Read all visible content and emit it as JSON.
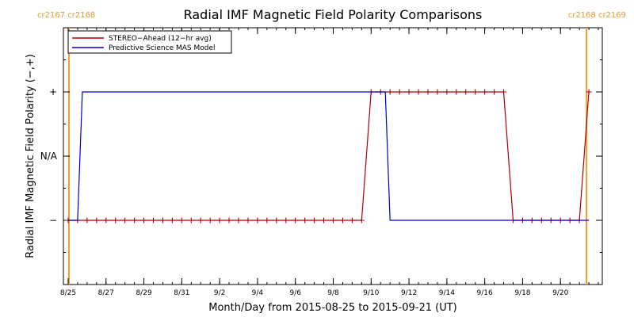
{
  "chart_data": {
    "type": "line",
    "title": "Radial IMF Magnetic Field Polarity Comparisons",
    "xlabel": "Month/Day from 2015-08-25 to 2015-09-21 (UT)",
    "ylabel": "Radial IMF Magnetic Field Polarity (−,+)",
    "xlim": [
      "2015-08-25T00:00",
      "2015-09-22T00:00"
    ],
    "ylim": [
      -2,
      2
    ],
    "x_ticks": [
      {
        "date": "2015-08-25",
        "label": "8/25"
      },
      {
        "date": "2015-08-27",
        "label": "8/27"
      },
      {
        "date": "2015-08-29",
        "label": "8/29"
      },
      {
        "date": "2015-08-31",
        "label": "8/31"
      },
      {
        "date": "2015-09-02",
        "label": "9/2"
      },
      {
        "date": "2015-09-04",
        "label": "9/4"
      },
      {
        "date": "2015-09-06",
        "label": "9/6"
      },
      {
        "date": "2015-09-08",
        "label": "9/8"
      },
      {
        "date": "2015-09-10",
        "label": "9/10"
      },
      {
        "date": "2015-09-12",
        "label": "9/12"
      },
      {
        "date": "2015-09-14",
        "label": "9/14"
      },
      {
        "date": "2015-09-16",
        "label": "9/16"
      },
      {
        "date": "2015-09-18",
        "label": "9/18"
      },
      {
        "date": "2015-09-20",
        "label": "9/20"
      }
    ],
    "y_ticks": [
      {
        "value": 1,
        "label": "+"
      },
      {
        "value": 0,
        "label": "N/A"
      },
      {
        "value": -1,
        "label": "−"
      }
    ],
    "carrington_markers": [
      {
        "date": "2015-08-25T01:00",
        "label": "cr2167 cr2168",
        "color": "#f0a030"
      },
      {
        "date": "2015-09-21T09:00",
        "label": "cr2168 cr2169",
        "color": "#f0a030"
      }
    ],
    "legend_position": "top-left",
    "series": [
      {
        "name": "STEREO−Ahead (12−hr avg)",
        "color": "#b00000",
        "marker": "plus",
        "points": [
          {
            "x": "2015-08-25T00:00",
            "y": -1
          },
          {
            "x": "2015-08-25T12:00",
            "y": -1
          },
          {
            "x": "2015-08-26T00:00",
            "y": -1
          },
          {
            "x": "2015-08-26T12:00",
            "y": -1
          },
          {
            "x": "2015-08-27T00:00",
            "y": -1
          },
          {
            "x": "2015-08-27T12:00",
            "y": -1
          },
          {
            "x": "2015-08-28T00:00",
            "y": -1
          },
          {
            "x": "2015-08-28T12:00",
            "y": -1
          },
          {
            "x": "2015-08-29T00:00",
            "y": -1
          },
          {
            "x": "2015-08-29T12:00",
            "y": -1
          },
          {
            "x": "2015-08-30T00:00",
            "y": -1
          },
          {
            "x": "2015-08-30T12:00",
            "y": -1
          },
          {
            "x": "2015-08-31T00:00",
            "y": -1
          },
          {
            "x": "2015-08-31T12:00",
            "y": -1
          },
          {
            "x": "2015-09-01T00:00",
            "y": -1
          },
          {
            "x": "2015-09-01T12:00",
            "y": -1
          },
          {
            "x": "2015-09-02T00:00",
            "y": -1
          },
          {
            "x": "2015-09-02T12:00",
            "y": -1
          },
          {
            "x": "2015-09-03T00:00",
            "y": -1
          },
          {
            "x": "2015-09-03T12:00",
            "y": -1
          },
          {
            "x": "2015-09-04T00:00",
            "y": -1
          },
          {
            "x": "2015-09-04T12:00",
            "y": -1
          },
          {
            "x": "2015-09-05T00:00",
            "y": -1
          },
          {
            "x": "2015-09-05T12:00",
            "y": -1
          },
          {
            "x": "2015-09-06T00:00",
            "y": -1
          },
          {
            "x": "2015-09-06T12:00",
            "y": -1
          },
          {
            "x": "2015-09-07T00:00",
            "y": -1
          },
          {
            "x": "2015-09-07T12:00",
            "y": -1
          },
          {
            "x": "2015-09-08T00:00",
            "y": -1
          },
          {
            "x": "2015-09-08T12:00",
            "y": -1
          },
          {
            "x": "2015-09-09T00:00",
            "y": -1
          },
          {
            "x": "2015-09-09T12:00",
            "y": -1
          },
          {
            "x": "2015-09-10T00:00",
            "y": 1
          },
          {
            "x": "2015-09-10T12:00",
            "y": 1
          },
          {
            "x": "2015-09-11T00:00",
            "y": 1
          },
          {
            "x": "2015-09-11T12:00",
            "y": 1
          },
          {
            "x": "2015-09-12T00:00",
            "y": 1
          },
          {
            "x": "2015-09-12T12:00",
            "y": 1
          },
          {
            "x": "2015-09-13T00:00",
            "y": 1
          },
          {
            "x": "2015-09-13T12:00",
            "y": 1
          },
          {
            "x": "2015-09-14T00:00",
            "y": 1
          },
          {
            "x": "2015-09-14T12:00",
            "y": 1
          },
          {
            "x": "2015-09-15T00:00",
            "y": 1
          },
          {
            "x": "2015-09-15T12:00",
            "y": 1
          },
          {
            "x": "2015-09-16T00:00",
            "y": 1
          },
          {
            "x": "2015-09-16T12:00",
            "y": 1
          },
          {
            "x": "2015-09-17T00:00",
            "y": 1
          },
          {
            "x": "2015-09-17T12:00",
            "y": -1
          },
          {
            "x": "2015-09-18T00:00",
            "y": -1
          },
          {
            "x": "2015-09-18T12:00",
            "y": -1
          },
          {
            "x": "2015-09-19T00:00",
            "y": -1
          },
          {
            "x": "2015-09-19T12:00",
            "y": -1
          },
          {
            "x": "2015-09-20T00:00",
            "y": -1
          },
          {
            "x": "2015-09-20T12:00",
            "y": -1
          },
          {
            "x": "2015-09-21T00:00",
            "y": -1
          },
          {
            "x": "2015-09-21T12:00",
            "y": 1
          }
        ]
      },
      {
        "name": "Predictive Science MAS Model",
        "color": "#0000cc",
        "marker": "none",
        "points": [
          {
            "x": "2015-08-25T00:00",
            "y": -1
          },
          {
            "x": "2015-08-25T12:00",
            "y": -1
          },
          {
            "x": "2015-08-25T15:00",
            "y": 0
          },
          {
            "x": "2015-08-25T18:00",
            "y": 1
          },
          {
            "x": "2015-09-10T12:00",
            "y": 1
          },
          {
            "x": "2015-09-10T18:00",
            "y": 1
          },
          {
            "x": "2015-09-11T00:00",
            "y": -1
          },
          {
            "x": "2015-09-21T12:00",
            "y": -1
          }
        ]
      }
    ]
  }
}
